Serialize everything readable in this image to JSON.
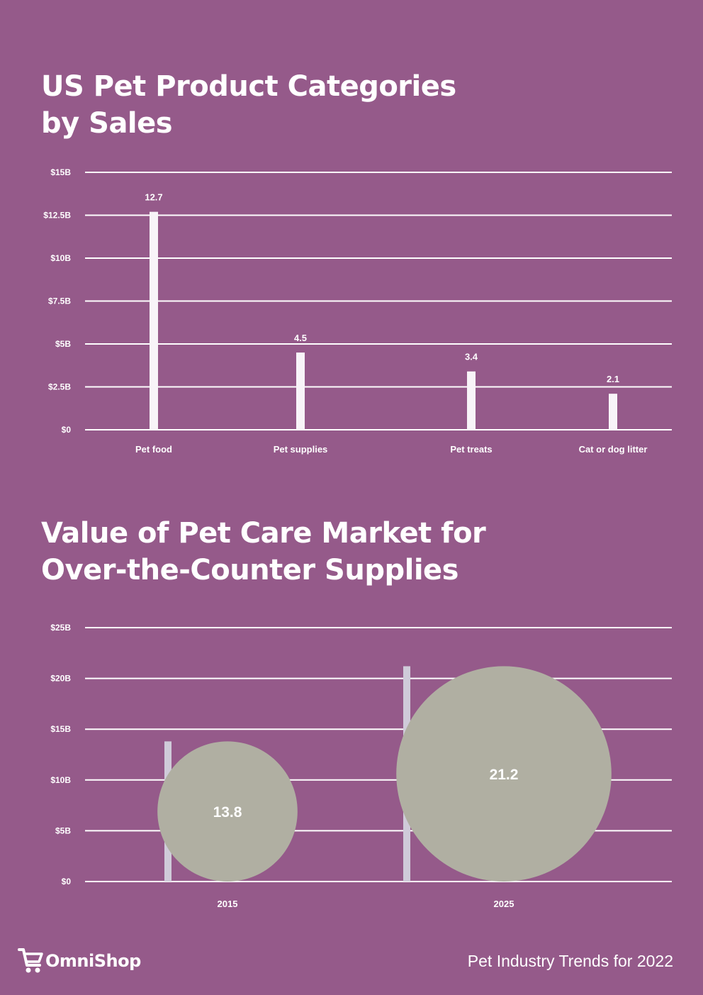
{
  "chart_data": [
    {
      "type": "bar",
      "title": "US Pet Product Categories by Sales",
      "title_lines": [
        "US Pet Product Categories",
        "by Sales"
      ],
      "categories": [
        "Pet food",
        "Pet supplies",
        "Pet treats",
        "Cat or dog litter"
      ],
      "values": [
        12.7,
        4.5,
        3.4,
        2.1
      ],
      "data_labels": [
        "12.7",
        "4.5",
        "3.4",
        "2.1"
      ],
      "ylim": [
        0,
        15
      ],
      "yticks": [
        0,
        2.5,
        5,
        7.5,
        10,
        12.5,
        15
      ],
      "ytick_labels": [
        "$0",
        "$2.5B",
        "$5B",
        "$7.5B",
        "$10B",
        "$12.5B",
        "$15B"
      ],
      "xlabel": "",
      "ylabel": "",
      "grid": true,
      "colors": {
        "bar": "#f8f4f8",
        "grid": "#ffffff"
      }
    },
    {
      "type": "bar",
      "subtype": "bar-with-bubble",
      "title": "Value of Pet Care Market for Over-the-Counter Supplies",
      "title_lines": [
        "Value of Pet Care Market for",
        "Over-the-Counter Supplies"
      ],
      "categories": [
        "2015",
        "2025"
      ],
      "values": [
        13.8,
        21.2
      ],
      "data_labels": [
        "13.8",
        "21.2"
      ],
      "ylim": [
        0,
        25
      ],
      "yticks": [
        0,
        5,
        10,
        15,
        20,
        25
      ],
      "ytick_labels": [
        "$0",
        "$5B",
        "$10B",
        "$15B",
        "$20B",
        "$25B"
      ],
      "xlabel": "",
      "ylabel": "",
      "grid": true,
      "colors": {
        "bar": "#cfcbd9",
        "bubble": "#b0afa2",
        "grid": "#ffffff"
      }
    }
  ],
  "footer": {
    "logo_text": "OmniShop",
    "logo_icon": "cart-icon",
    "caption": "Pet Industry Trends for 2022"
  },
  "colors": {
    "background": "#955a8a",
    "text": "#ffffff"
  }
}
